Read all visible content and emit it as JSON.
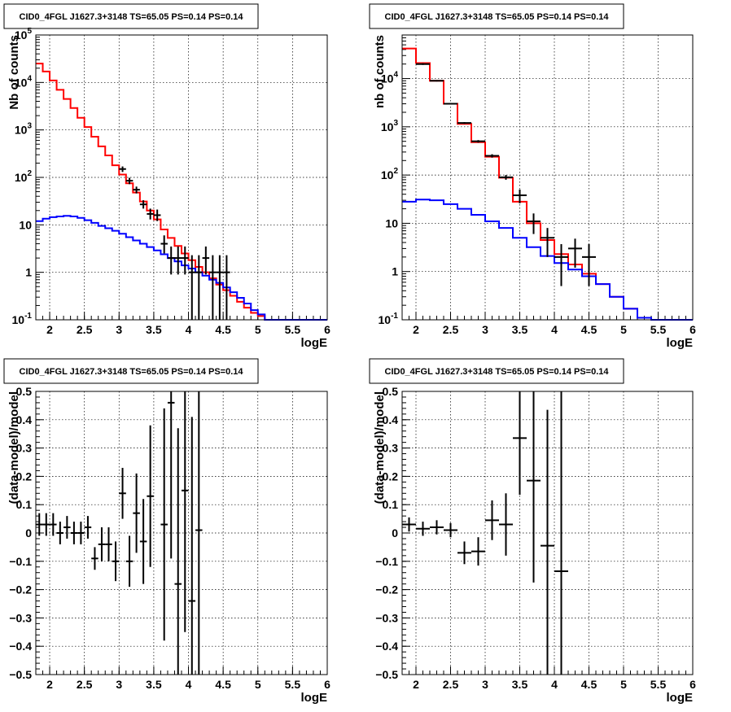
{
  "colors": {
    "data": "#000000",
    "total_model": "#ff0000",
    "source_model": "#0000ff",
    "frame": "#000000",
    "grid": "#000000"
  },
  "grid": true,
  "chart_data": [
    {
      "type": "line",
      "title": "CID0_4FGL J1627.3+3148 TS=65.05 PS=0.14 PS=0.14",
      "xlabel": "logE",
      "ylabel": "Nb of counts",
      "xlim": [
        1.8,
        6
      ],
      "ylim": [
        0.1,
        100000
      ],
      "ylog": true,
      "xticks": [
        "2",
        "2.5",
        "3",
        "3.5",
        "4",
        "4.5",
        "5",
        "5.5",
        "6"
      ],
      "yticks": [
        "10^-1",
        "1",
        "10",
        "10^2",
        "10^3",
        "10^4",
        "10^5"
      ],
      "bin_edges": [
        1.8,
        1.9,
        2.0,
        2.1,
        2.2,
        2.3,
        2.4,
        2.5,
        2.6,
        2.7,
        2.8,
        2.9,
        3.0,
        3.1,
        3.2,
        3.3,
        3.4,
        3.5,
        3.6,
        3.7,
        3.8,
        3.9,
        4.0,
        4.1,
        4.2,
        4.3,
        4.4,
        4.5,
        4.6,
        4.7,
        4.8,
        4.9,
        5.0,
        5.1,
        5.2,
        5.3,
        5.4,
        5.5,
        5.6,
        5.7,
        5.8,
        5.9,
        6.0
      ],
      "series": [
        {
          "role": "total_model",
          "values": [
            25000,
            17000,
            11000,
            7000,
            4500,
            2900,
            1800,
            1150,
            720,
            450,
            290,
            180,
            115,
            75,
            48,
            31,
            20,
            13,
            8,
            5.3,
            3.6,
            2.5,
            1.8,
            1.3,
            1.0,
            0.75,
            0.55,
            0.42,
            0.32,
            0.24,
            0.18,
            0.14,
            0.12,
            0.1,
            0.09,
            0.09,
            0.09,
            0.09,
            0.09,
            0.09,
            0.09,
            0.09
          ]
        },
        {
          "role": "source_model",
          "values": [
            12,
            13.5,
            14.5,
            15,
            15.5,
            15,
            14,
            12.5,
            11,
            9.5,
            8.5,
            7.5,
            6.5,
            5.5,
            4.7,
            4.0,
            3.4,
            2.9,
            2.4,
            2.0,
            1.7,
            1.4,
            1.2,
            1.0,
            0.85,
            0.7,
            0.6,
            0.48,
            0.38,
            0.29,
            0.22,
            0.16,
            0.13,
            0.1,
            0.09,
            0.09,
            0.09,
            0.09,
            0.09,
            0.09,
            0.09,
            0.09
          ]
        },
        {
          "role": "data",
          "x": [
            3.05,
            3.15,
            3.25,
            3.35,
            3.45,
            3.55,
            3.65,
            3.75,
            3.85,
            3.95,
            4.05,
            4.15,
            4.25,
            4.35,
            4.45,
            4.55
          ],
          "y": [
            150,
            85,
            55,
            27,
            17,
            16,
            4,
            2,
            2,
            2,
            1,
            1,
            2,
            1,
            1,
            1
          ],
          "ylo": [
            130,
            72,
            46,
            22,
            13,
            12,
            2.5,
            0.9,
            0.9,
            0.9,
            0.1,
            0.1,
            0.9,
            0.1,
            0.1,
            0.1
          ],
          "yhi": [
            170,
            98,
            64,
            33,
            22,
            21,
            6,
            3.5,
            3.5,
            3.5,
            2.3,
            2.3,
            3.5,
            2.3,
            2.3,
            2.3
          ]
        }
      ]
    },
    {
      "type": "line",
      "title": "CID0_4FGL J1627.3+3148 TS=65.05 PS=0.14 PS=0.14",
      "xlabel": "logE",
      "ylabel": "nb of counts",
      "xlim": [
        1.8,
        6
      ],
      "ylim": [
        0.1,
        80000
      ],
      "ylog": true,
      "xticks": [
        "2",
        "2.5",
        "3",
        "3.5",
        "4",
        "4.5",
        "5",
        "5.5",
        "6"
      ],
      "yticks": [
        "10^-1",
        "1",
        "10",
        "10^2",
        "10^3",
        "10^4"
      ],
      "bin_edges": [
        1.8,
        2.0,
        2.2,
        2.4,
        2.6,
        2.8,
        3.0,
        3.2,
        3.4,
        3.6,
        3.8,
        4.0,
        4.2,
        4.4,
        4.6,
        4.8,
        5.0,
        5.2,
        5.4,
        5.6,
        5.8,
        6.0
      ],
      "series": [
        {
          "role": "total_model",
          "values": [
            42000,
            21000,
            9000,
            3000,
            1150,
            480,
            240,
            88,
            28,
            10,
            4.5,
            2.3,
            1.4,
            0.9,
            0.55,
            0.3,
            0.17,
            0.11,
            0.09,
            0.09,
            0.09
          ]
        },
        {
          "role": "source_model",
          "values": [
            28,
            31,
            30,
            25,
            20,
            15,
            11,
            8,
            5,
            3.2,
            2.1,
            1.5,
            1.1,
            0.8,
            0.55,
            0.3,
            0.17,
            0.11,
            0.09,
            0.09,
            0.09
          ]
        },
        {
          "role": "data",
          "x": [
            2.1,
            2.3,
            2.5,
            2.7,
            2.9,
            3.1,
            3.3,
            3.5,
            3.7,
            3.9,
            4.1,
            4.3,
            4.5
          ],
          "y": [
            20000,
            9000,
            3000,
            1200,
            500,
            250,
            90,
            38,
            11,
            5,
            2,
            3,
            2
          ],
          "ylo": [
            19200,
            8700,
            2900,
            1150,
            470,
            230,
            80,
            26,
            6,
            2,
            0.5,
            1.2,
            0.5
          ],
          "yhi": [
            20800,
            9300,
            3100,
            1250,
            530,
            270,
            100,
            50,
            16,
            8,
            3.7,
            4.8,
            3.7
          ]
        }
      ]
    },
    {
      "type": "scatter",
      "title": "CID0_4FGL J1627.3+3148 TS=65.05 PS=0.14 PS=0.14",
      "xlabel": "logE",
      "ylabel": "(data-model)/model",
      "xlim": [
        1.8,
        6
      ],
      "ylim": [
        -0.5,
        0.5
      ],
      "xticks": [
        "2",
        "2.5",
        "3",
        "3.5",
        "4",
        "4.5",
        "5",
        "5.5",
        "6"
      ],
      "yticks": [
        "−0.5",
        "−0.4",
        "−0.3",
        "−0.2",
        "−0.1",
        "0",
        "0.1",
        "0.2",
        "0.3",
        "0.4",
        "0.5"
      ],
      "bin_width": 0.1,
      "series": [
        {
          "role": "data",
          "x": [
            1.85,
            1.95,
            2.05,
            2.15,
            2.25,
            2.35,
            2.45,
            2.55,
            2.65,
            2.75,
            2.85,
            2.95,
            3.05,
            3.15,
            3.25,
            3.35,
            3.45,
            3.65,
            3.75,
            3.85,
            3.95,
            4.05,
            4.15
          ],
          "y": [
            0.03,
            0.03,
            0.03,
            0.0,
            0.02,
            0.0,
            0.0,
            0.02,
            -0.09,
            -0.04,
            -0.04,
            -0.1,
            0.14,
            -0.1,
            0.07,
            -0.03,
            0.13,
            0.03,
            0.46,
            -0.18,
            0.15,
            -0.24,
            0.01
          ],
          "yerr": [
            0.04,
            0.04,
            0.04,
            0.04,
            0.04,
            0.04,
            0.04,
            0.04,
            0.04,
            0.06,
            0.06,
            0.07,
            0.09,
            0.09,
            0.14,
            0.15,
            0.25,
            0.41,
            0.55,
            0.55,
            0.5,
            0.65,
            0.9
          ]
        }
      ]
    },
    {
      "type": "scatter",
      "title": "CID0_4FGL J1627.3+3148 TS=65.05 PS=0.14 PS=0.14",
      "xlabel": "logE",
      "ylabel": "(data-model)/model",
      "xlim": [
        1.8,
        6
      ],
      "ylim": [
        -0.5,
        0.5
      ],
      "xticks": [
        "2",
        "2.5",
        "3",
        "3.5",
        "4",
        "4.5",
        "5",
        "5.5",
        "6"
      ],
      "yticks": [
        "−0.5",
        "−0.4",
        "−0.3",
        "−0.2",
        "−0.1",
        "0",
        "0.1",
        "0.2",
        "0.3",
        "0.4",
        "0.5"
      ],
      "bin_width": 0.2,
      "series": [
        {
          "role": "data",
          "x": [
            1.9,
            2.1,
            2.3,
            2.5,
            2.7,
            2.9,
            3.1,
            3.3,
            3.5,
            3.7,
            3.9,
            4.1
          ],
          "y": [
            0.03,
            0.015,
            0.02,
            0.01,
            -0.07,
            -0.065,
            0.045,
            0.03,
            0.335,
            0.185,
            -0.045,
            -0.135
          ],
          "yerr": [
            0.025,
            0.025,
            0.025,
            0.025,
            0.04,
            0.05,
            0.07,
            0.11,
            0.2,
            0.36,
            0.48,
            0.78
          ]
        }
      ]
    }
  ]
}
